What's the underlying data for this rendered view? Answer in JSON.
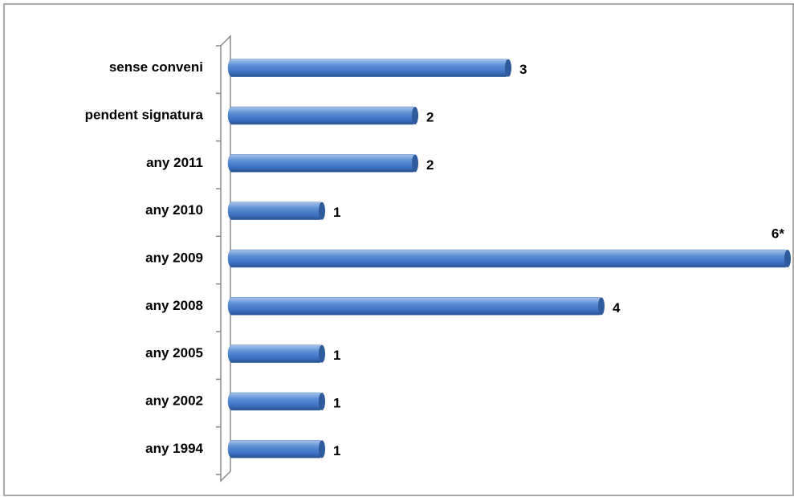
{
  "chart_data": {
    "type": "bar",
    "orientation": "horizontal",
    "categories": [
      "sense conveni",
      "pendent signatura",
      "any 2011",
      "any 2010",
      "any 2009",
      "any 2008",
      "any 2005",
      "any 2002",
      "any 1994"
    ],
    "values": [
      3,
      2,
      2,
      1,
      6,
      4,
      1,
      1,
      1
    ],
    "value_labels": [
      "3",
      "2",
      "2",
      "1",
      "6*",
      "4",
      "1",
      "1",
      "1"
    ],
    "color": "#4f81bd"
  }
}
